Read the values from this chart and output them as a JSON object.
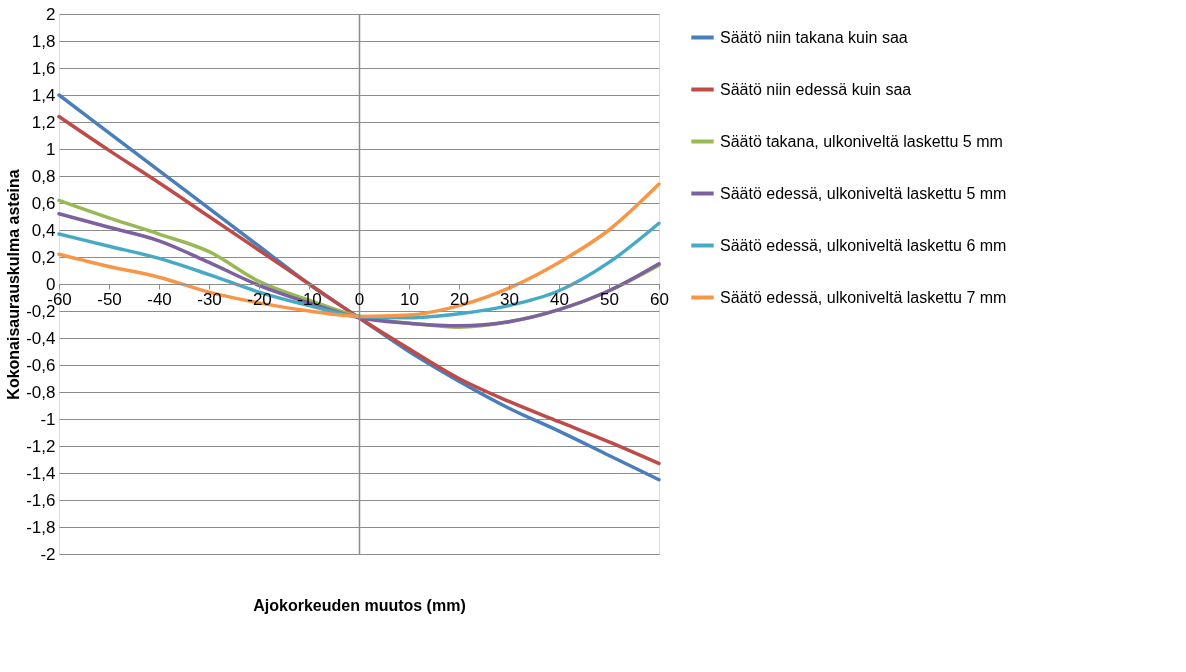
{
  "chart_data": {
    "type": "line",
    "xlabel": "Ajokorkeuden muutos (mm)",
    "ylabel": "Kokonaisaurauskulma asteina",
    "x": [
      -60,
      -50,
      -40,
      -30,
      -20,
      -10,
      0,
      10,
      20,
      30,
      40,
      50,
      60
    ],
    "series": [
      {
        "name": "Säätö niin takana kuin saa",
        "color": "#4a7ebb",
        "values": [
          1.4,
          1.12,
          0.84,
          0.56,
          0.28,
          0.0,
          -0.25,
          -0.5,
          -0.72,
          -0.92,
          -1.09,
          -1.27,
          -1.45
        ]
      },
      {
        "name": "Säätö niin edessä kuin saa",
        "color": "#be4b48",
        "values": [
          1.24,
          0.99,
          0.75,
          0.5,
          0.25,
          0.0,
          -0.25,
          -0.48,
          -0.7,
          -0.87,
          -1.02,
          -1.17,
          -1.33
        ]
      },
      {
        "name": "Säätö takana, ulkoniveltä laskettu 5 mm",
        "color": "#98b954",
        "values": [
          0.62,
          0.49,
          0.37,
          0.24,
          0.02,
          -0.12,
          -0.24,
          -0.29,
          -0.32,
          -0.28,
          -0.19,
          -0.05,
          0.14
        ]
      },
      {
        "name": "Säätö edessä, ulkoniveltä laskettu 5 mm",
        "color": "#7d60a0",
        "values": [
          0.52,
          0.42,
          0.32,
          0.16,
          -0.01,
          -0.14,
          -0.25,
          -0.29,
          -0.31,
          -0.28,
          -0.19,
          -0.05,
          0.15
        ]
      },
      {
        "name": "Säätö edessä, ulkoniveltä laskettu 6 mm",
        "color": "#46aac5",
        "values": [
          0.37,
          0.28,
          0.19,
          0.07,
          -0.06,
          -0.16,
          -0.24,
          -0.25,
          -0.22,
          -0.16,
          -0.05,
          0.16,
          0.45
        ]
      },
      {
        "name": "Säätö edessä, ulkoniveltä laskettu 7 mm",
        "color": "#f79646",
        "values": [
          0.22,
          0.13,
          0.05,
          -0.06,
          -0.14,
          -0.2,
          -0.24,
          -0.23,
          -0.16,
          -0.03,
          0.16,
          0.4,
          0.74
        ]
      }
    ],
    "xlim": [
      -60,
      60
    ],
    "xticks": [
      -60,
      -50,
      -40,
      -30,
      -20,
      -10,
      0,
      10,
      20,
      30,
      40,
      50,
      60
    ],
    "ylim": [
      -2,
      2
    ],
    "yticks": [
      {
        "value": -2,
        "label": "-2"
      },
      {
        "value": -1.8,
        "label": "-1,8"
      },
      {
        "value": -1.6,
        "label": "-1,6"
      },
      {
        "value": -1.4,
        "label": "-1,4"
      },
      {
        "value": -1.2,
        "label": "-1,2"
      },
      {
        "value": -1,
        "label": "-1"
      },
      {
        "value": -0.8,
        "label": "-0,8"
      },
      {
        "value": -0.6,
        "label": "-0,6"
      },
      {
        "value": -0.4,
        "label": "-0,4"
      },
      {
        "value": -0.2,
        "label": "-0,2"
      },
      {
        "value": 0,
        "label": "0"
      },
      {
        "value": 0.2,
        "label": "0,2"
      },
      {
        "value": 0.4,
        "label": "0,4"
      },
      {
        "value": 0.6,
        "label": "0,6"
      },
      {
        "value": 0.8,
        "label": "0,8"
      },
      {
        "value": 1,
        "label": "1"
      },
      {
        "value": 1.2,
        "label": "1,2"
      },
      {
        "value": 1.4,
        "label": "1,4"
      },
      {
        "value": 1.6,
        "label": "1,6"
      },
      {
        "value": 1.8,
        "label": "1,8"
      },
      {
        "value": 2,
        "label": "2"
      }
    ],
    "grid": "y",
    "legend": "right",
    "marker": "none",
    "line_style": "solid"
  }
}
